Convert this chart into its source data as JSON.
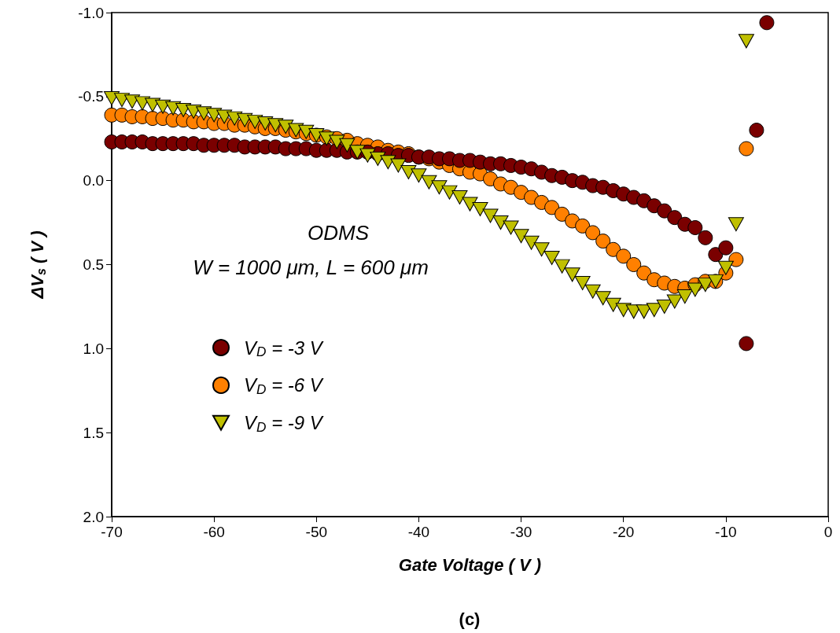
{
  "chart_data": {
    "type": "scatter",
    "xlabel": "Gate Voltage ( V )",
    "ylabel": "ΔV$_{s}$ ( V )",
    "annotations": [
      "ODMS",
      "W = 1000 μm, L = 600 μm",
      "(c)"
    ],
    "x": [
      -70,
      -69,
      -68,
      -67,
      -66,
      -65,
      -64,
      -63,
      -62,
      -61,
      -60,
      -59,
      -58,
      -57,
      -56,
      -55,
      -54,
      -53,
      -52,
      -51,
      -50,
      -49,
      -48,
      -47,
      -46,
      -45,
      -44,
      -43,
      -42,
      -41,
      -40,
      -39,
      -38,
      -37,
      -36,
      -35,
      -34,
      -33,
      -32,
      -31,
      -30,
      -29,
      -28,
      -27,
      -26,
      -25,
      -24,
      -23,
      -22,
      -21,
      -20,
      -19,
      -18,
      -17,
      -16,
      -15,
      -14,
      -13,
      -12,
      -11,
      -10,
      -9,
      -8,
      -7,
      -6
    ],
    "series": [
      {
        "name": "V$_{D}$ = -3 V",
        "color": "#7a0000",
        "marker": "circle",
        "values": [
          -0.23,
          -0.23,
          -0.23,
          -0.23,
          -0.22,
          -0.22,
          -0.22,
          -0.22,
          -0.22,
          -0.21,
          -0.21,
          -0.21,
          -0.21,
          -0.2,
          -0.2,
          -0.2,
          -0.2,
          -0.19,
          -0.19,
          -0.19,
          -0.18,
          -0.18,
          -0.18,
          -0.17,
          -0.17,
          -0.17,
          -0.16,
          -0.16,
          -0.15,
          -0.15,
          -0.14,
          -0.14,
          -0.13,
          -0.13,
          -0.12,
          -0.12,
          -0.11,
          -0.1,
          -0.1,
          -0.09,
          -0.08,
          -0.07,
          -0.05,
          -0.03,
          -0.02,
          0.0,
          0.01,
          0.03,
          0.04,
          0.06,
          0.08,
          0.1,
          0.12,
          0.15,
          0.18,
          0.22,
          0.26,
          0.28,
          0.34,
          0.44,
          0.4,
          null,
          0.97,
          -0.3,
          -0.94
        ]
      },
      {
        "name": "V$_{D}$ = -6 V",
        "color": "#ff8000",
        "marker": "circle",
        "values": [
          -0.39,
          -0.39,
          -0.38,
          -0.38,
          -0.37,
          -0.37,
          -0.36,
          -0.36,
          -0.35,
          -0.35,
          -0.34,
          -0.34,
          -0.33,
          -0.33,
          -0.32,
          -0.31,
          -0.31,
          -0.3,
          -0.29,
          -0.28,
          -0.27,
          -0.26,
          -0.25,
          -0.24,
          -0.22,
          -0.21,
          -0.2,
          -0.18,
          -0.17,
          -0.16,
          -0.14,
          -0.13,
          -0.11,
          -0.09,
          -0.07,
          -0.05,
          -0.04,
          -0.01,
          0.02,
          0.04,
          0.07,
          0.1,
          0.13,
          0.16,
          0.2,
          0.24,
          0.27,
          0.31,
          0.36,
          0.41,
          0.45,
          0.5,
          0.55,
          0.59,
          0.61,
          0.63,
          0.64,
          0.62,
          0.6,
          0.6,
          0.55,
          0.47,
          -0.19,
          null,
          null
        ]
      },
      {
        "name": "V$_{D}$ = -9 V",
        "color": "#c0c000",
        "marker": "triangle-down",
        "values": [
          -0.49,
          -0.48,
          -0.47,
          -0.46,
          -0.45,
          -0.44,
          -0.43,
          -0.42,
          -0.41,
          -0.4,
          -0.39,
          -0.38,
          -0.37,
          -0.36,
          -0.35,
          -0.34,
          -0.33,
          -0.32,
          -0.3,
          -0.29,
          -0.27,
          -0.25,
          -0.23,
          -0.21,
          -0.17,
          -0.15,
          -0.13,
          -0.11,
          -0.09,
          -0.05,
          -0.03,
          0.01,
          0.04,
          0.07,
          0.1,
          0.14,
          0.17,
          0.21,
          0.25,
          0.28,
          0.33,
          0.37,
          0.41,
          0.46,
          0.51,
          0.56,
          0.61,
          0.66,
          0.7,
          0.74,
          0.77,
          0.78,
          0.78,
          0.77,
          0.75,
          0.72,
          0.69,
          0.65,
          0.62,
          0.6,
          0.52,
          0.26,
          -0.83,
          null,
          null
        ]
      }
    ],
    "xlim": [
      -70,
      0
    ],
    "xticks": [
      -70,
      -60,
      -50,
      -40,
      -30,
      -20,
      -10,
      0
    ],
    "ylim": [
      2.0,
      -1.0
    ],
    "yticks": [
      {
        "value": -1,
        "label": "-1.0"
      },
      {
        "value": -0.5,
        "label": "-0.5"
      },
      {
        "value": 0,
        "label": "0.0"
      },
      {
        "value": 0.5,
        "label": "0.5"
      },
      {
        "value": 1,
        "label": "1.0"
      },
      {
        "value": 1.5,
        "label": "1.5"
      },
      {
        "value": 2,
        "label": "2.0"
      }
    ],
    "grid": false,
    "legend": "left"
  }
}
